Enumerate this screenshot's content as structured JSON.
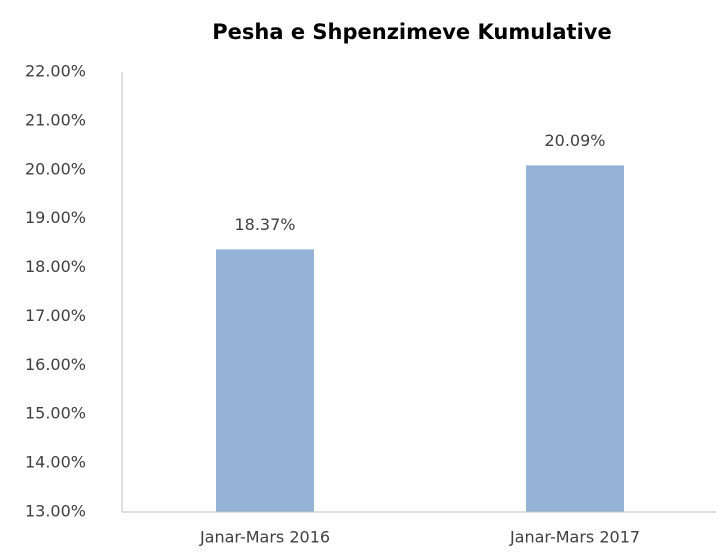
{
  "chart_data": {
    "type": "bar",
    "title": "Pesha e Shpenzimeve Kumulative",
    "categories": [
      "Janar-Mars 2016",
      "Janar-Mars 2017"
    ],
    "values": [
      18.37,
      20.09
    ],
    "value_labels": [
      "18.37%",
      "20.09%"
    ],
    "color": "#95b3d7",
    "ylim": [
      13,
      22
    ],
    "yticks": [
      {
        "value": 13,
        "label": "13.00%"
      },
      {
        "value": 14,
        "label": "14.00%"
      },
      {
        "value": 15,
        "label": "15.00%"
      },
      {
        "value": 16,
        "label": "16.00%"
      },
      {
        "value": 17,
        "label": "17.00%"
      },
      {
        "value": 18,
        "label": "18.00%"
      },
      {
        "value": 19,
        "label": "19.00%"
      },
      {
        "value": 20,
        "label": "20.00%"
      },
      {
        "value": 21,
        "label": "21.00%"
      },
      {
        "value": 22,
        "label": "22.00%"
      }
    ],
    "grid": false
  }
}
